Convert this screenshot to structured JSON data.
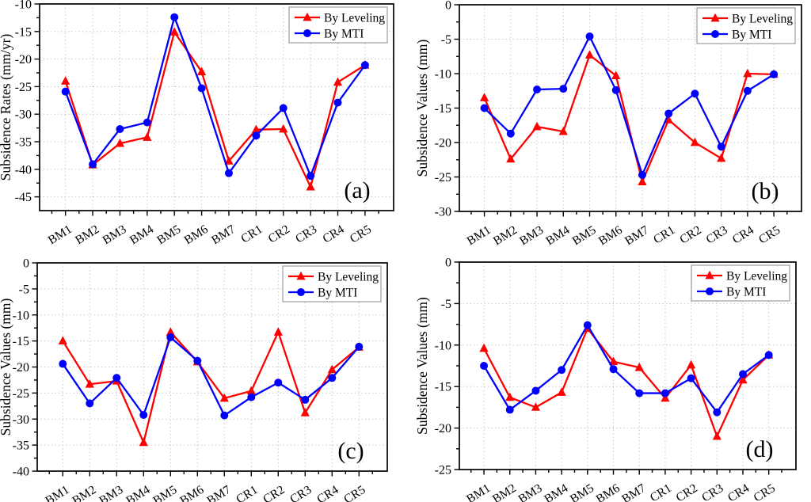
{
  "figure": {
    "background": "#ffffff",
    "axis_color": "#000000",
    "grid_color": "#c8c8c8",
    "text_color": "#000000",
    "legend_border_color": "#8a8a8a",
    "legend_labels": [
      "By Leveling",
      "By MTI"
    ],
    "series_colors": {
      "leveling": "#ff0000",
      "mti": "#0000ff"
    }
  },
  "chart_data": [
    {
      "type": "line",
      "panel_label": "(a)",
      "ylabel": "Subsidence Rates (mm/yr)",
      "ylim": [
        -47.5,
        -10
      ],
      "yticks": [
        -10,
        -15,
        -20,
        -25,
        -30,
        -35,
        -40,
        -45
      ],
      "minor_step": 2.5,
      "grid": true,
      "legend_position": "top-right",
      "categories": [
        "BM1",
        "BM2",
        "BM3",
        "BM4",
        "BM5",
        "BM6",
        "BM7",
        "CR1",
        "CR2",
        "CR3",
        "CR4",
        "CR5"
      ],
      "series": [
        {
          "name": "By Leveling",
          "color": "#ff0000",
          "marker": "triangle",
          "values": [
            -24.0,
            -39.2,
            -35.3,
            -34.2,
            -15.1,
            -22.3,
            -38.5,
            -32.8,
            -32.7,
            -43.2,
            -24.2,
            -21.1
          ]
        },
        {
          "name": "By MTI",
          "color": "#0000ff",
          "marker": "circle",
          "values": [
            -25.9,
            -39.1,
            -32.7,
            -31.5,
            -12.4,
            -25.3,
            -40.7,
            -33.9,
            -28.9,
            -41.2,
            -27.9,
            -21.1
          ]
        }
      ]
    },
    {
      "type": "line",
      "panel_label": "(b)",
      "ylabel": "Subsidence Values (mm)",
      "ylim": [
        -30,
        0
      ],
      "yticks": [
        0,
        -5,
        -10,
        -15,
        -20,
        -25,
        -30
      ],
      "minor_step": 2.5,
      "grid": true,
      "legend_position": "top-right",
      "categories": [
        "BM1",
        "BM2",
        "BM3",
        "BM4",
        "BM5",
        "BM6",
        "BM7",
        "CR1",
        "CR2",
        "CR3",
        "CR4",
        "CR5"
      ],
      "series": [
        {
          "name": "By Leveling",
          "color": "#ff0000",
          "marker": "triangle",
          "values": [
            -13.5,
            -22.4,
            -17.7,
            -18.4,
            -7.3,
            -10.3,
            -25.7,
            -16.7,
            -20.0,
            -22.3,
            -10.0,
            -10.1
          ]
        },
        {
          "name": "By MTI",
          "color": "#0000ff",
          "marker": "circle",
          "values": [
            -15.0,
            -18.7,
            -12.3,
            -12.2,
            -4.6,
            -12.4,
            -24.7,
            -15.8,
            -12.9,
            -20.6,
            -12.5,
            -10.1
          ]
        }
      ]
    },
    {
      "type": "line",
      "panel_label": "(c)",
      "ylabel": "Subsidence Values (mm)",
      "ylim": [
        -40,
        0
      ],
      "yticks": [
        0,
        -5,
        -10,
        -15,
        -20,
        -25,
        -30,
        -35,
        -40
      ],
      "minor_step": 2.5,
      "grid": true,
      "legend_position": "top-right",
      "categories": [
        "BM1",
        "BM2",
        "BM3",
        "BM4",
        "BM5",
        "BM6",
        "BM7",
        "CR1",
        "CR2",
        "CR3",
        "CR4",
        "CR5"
      ],
      "series": [
        {
          "name": "By Leveling",
          "color": "#ff0000",
          "marker": "triangle",
          "values": [
            -15.0,
            -23.3,
            -22.7,
            -34.5,
            -13.3,
            -19.0,
            -26.0,
            -24.6,
            -13.3,
            -28.8,
            -20.5,
            -16.2
          ]
        },
        {
          "name": "By MTI",
          "color": "#0000ff",
          "marker": "circle",
          "values": [
            -19.4,
            -27.0,
            -22.1,
            -29.2,
            -14.3,
            -18.8,
            -29.3,
            -25.8,
            -23.0,
            -26.3,
            -22.1,
            -16.1
          ]
        }
      ]
    },
    {
      "type": "line",
      "panel_label": "(d)",
      "ylabel": "Subsidence Values (mm)",
      "ylim": [
        -25,
        0
      ],
      "yticks": [
        0,
        -5,
        -10,
        -15,
        -20,
        -25
      ],
      "minor_step": 2.5,
      "grid": true,
      "legend_position": "top-right",
      "categories": [
        "BM1",
        "BM2",
        "BM3",
        "BM4",
        "BM5",
        "BM6",
        "BM7",
        "CR1",
        "CR2",
        "CR3",
        "CR4",
        "CR5"
      ],
      "series": [
        {
          "name": "By Leveling",
          "color": "#ff0000",
          "marker": "triangle",
          "values": [
            -10.4,
            -16.3,
            -17.5,
            -15.7,
            -8.0,
            -12.0,
            -12.7,
            -16.4,
            -12.4,
            -21.0,
            -14.2,
            -11.2
          ]
        },
        {
          "name": "By MTI",
          "color": "#0000ff",
          "marker": "circle",
          "values": [
            -12.5,
            -17.8,
            -15.5,
            -13.0,
            -7.6,
            -12.9,
            -15.8,
            -15.8,
            -14.0,
            -18.1,
            -13.5,
            -11.2
          ]
        }
      ]
    }
  ]
}
